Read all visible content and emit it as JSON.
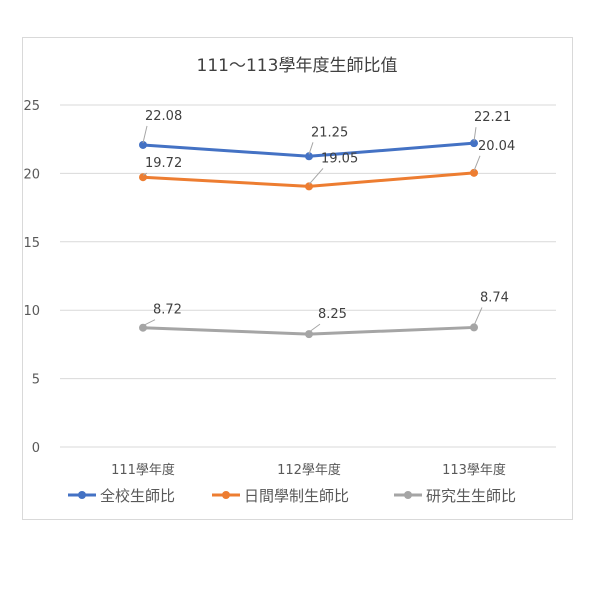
{
  "chart_data": {
    "type": "line",
    "title": "111～113學年度生師比值",
    "categories": [
      "111學年度",
      "112學年度",
      "113學年度"
    ],
    "ylim": [
      0,
      25
    ],
    "yticks": [
      "0",
      "5",
      "10",
      "15",
      "20",
      "25"
    ],
    "grid": true,
    "legend_position": "bottom",
    "series": [
      {
        "name": "全校生師比",
        "color": "#4472c4",
        "values": [
          22.08,
          21.25,
          22.21
        ],
        "labels": [
          "22.08",
          "21.25",
          "22.21"
        ]
      },
      {
        "name": "日間學制生師比",
        "color": "#ed7d31",
        "values": [
          19.72,
          19.05,
          20.04
        ],
        "labels": [
          "19.72",
          "19.05",
          "20.04"
        ]
      },
      {
        "name": "研究生生師比",
        "color": "#a5a5a5",
        "values": [
          8.72,
          8.25,
          8.74
        ],
        "labels": [
          "8.72",
          "8.25",
          "8.74"
        ]
      }
    ]
  }
}
